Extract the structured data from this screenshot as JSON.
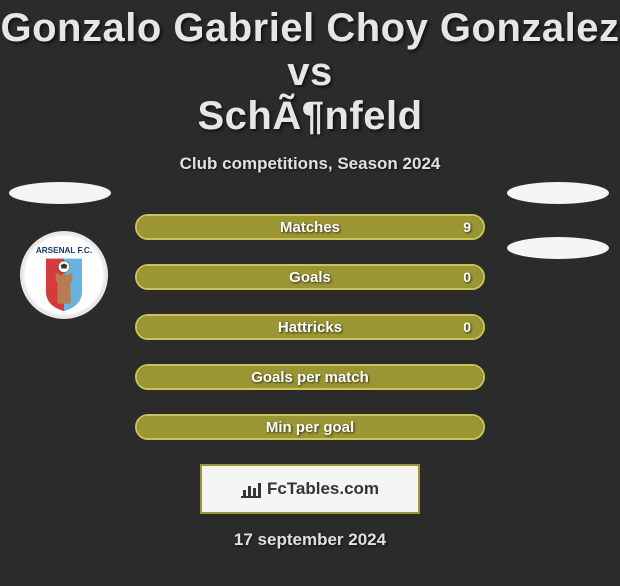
{
  "colors": {
    "background": "#2b2b2b",
    "title": "#e6e6e6",
    "subtitle": "#e0e0e0",
    "bar_fill": "#9b9634",
    "bar_border": "#c9c359",
    "bar_text": "#ffffff",
    "footer_border": "#9b9634",
    "footer_text": "#353535",
    "footer_bg": "#f5f5f5",
    "date": "#e0e0e0",
    "pill": "#f5f5f5"
  },
  "fontsize": {
    "title": 40,
    "subtitle": 17,
    "bar_label": 15,
    "bar_value": 14,
    "footer": 17,
    "date": 17
  },
  "title_line1": "Gonzalo Gabriel Choy Gonzalez vs",
  "title_line2": "SchÃ¶nfeld",
  "subtitle": "Club competitions, Season 2024",
  "bars": [
    {
      "label": "Matches",
      "value": "9",
      "fill_pct": 100
    },
    {
      "label": "Goals",
      "value": "0",
      "fill_pct": 100
    },
    {
      "label": "Hattricks",
      "value": "0",
      "fill_pct": 100
    },
    {
      "label": "Goals per match",
      "value": "",
      "fill_pct": 100
    },
    {
      "label": "Min per goal",
      "value": "",
      "fill_pct": 100
    }
  ],
  "footer_brand": "FcTables.com",
  "date": "17 september 2024",
  "badge": {
    "outer_ring": "#e8e8e8",
    "top_text_bg": "#ffffff",
    "top_text_color": "#1a3a6e",
    "top_text": "ARSENAL F.C.",
    "stripe_blue": "#6ab3e0",
    "stripe_red": "#d43b3b",
    "tower": "#b77c52"
  }
}
